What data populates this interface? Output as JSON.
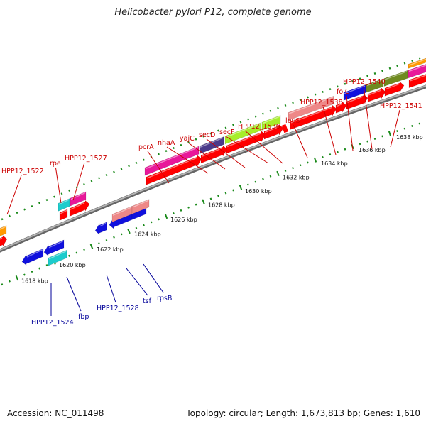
{
  "title": "Helicobacter pylori P12, complete genome",
  "footer": {
    "accession": "Accession: NC_011498",
    "topology": "Topology: circular; Length: 1,673,813 bp; Genes: 1,610"
  },
  "colors": {
    "cds": "#ff0000",
    "backbone": "#8a8a8a",
    "tick": "#1a8a1a",
    "forward_label": "#cc0000",
    "reverse_label": "#000099",
    "magenta": "#e8189a",
    "navy": "#4b3a8a",
    "lime": "#a6ee2a",
    "salmon": "#ee8888",
    "cyan": "#1ccccc",
    "blue": "#1010dd",
    "olive": "#6f8a20",
    "orange": "#ff9900"
  },
  "scale_labels": [
    "1618 kbp",
    "1620 kbp",
    "1622 kbp",
    "1624 kbp",
    "1626 kbp",
    "1628 kbp",
    "1630 kbp",
    "1632 kbp",
    "1634 kbp",
    "1636 kbp",
    "1638 kbp"
  ],
  "forward_genes": [
    "HPP12_1522",
    "rpe",
    "HPP12_1527",
    "pcrA",
    "nhaA",
    "yajC",
    "secD",
    "secF",
    "HPP12_1536",
    "leuS",
    "HPP12_1538",
    "folC",
    "HPP12_1540",
    "HPP12_1541"
  ],
  "reverse_genes": [
    "HPP12_1524",
    "fbp",
    "HPP12_1528",
    "tsf",
    "rpsB"
  ]
}
